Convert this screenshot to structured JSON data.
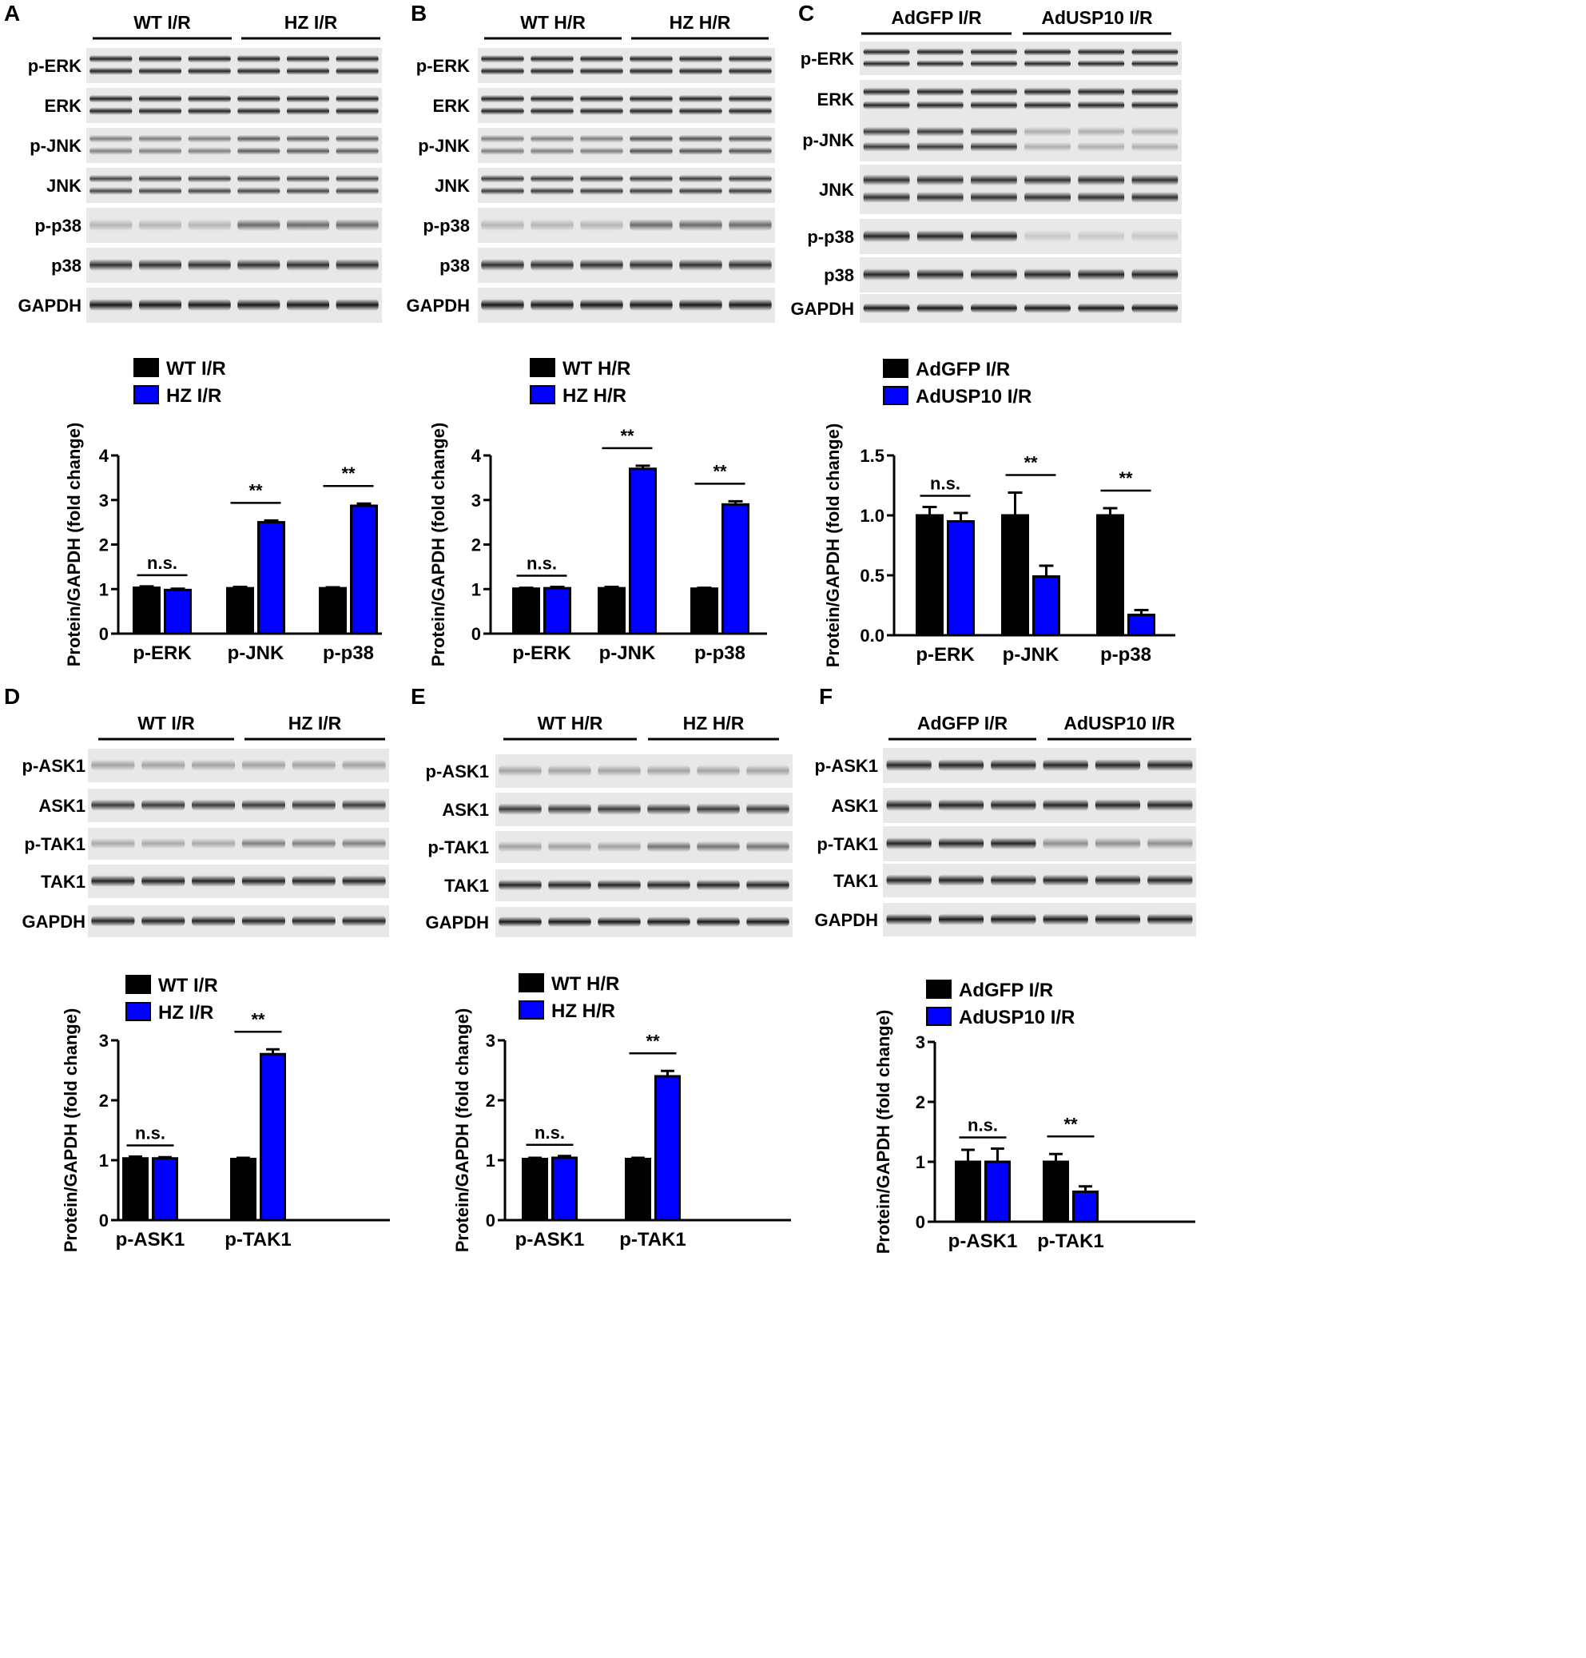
{
  "colors": {
    "black_series": "#000000",
    "blue_series": "#0000ff"
  },
  "panels": [
    {
      "letter": "A",
      "groups": [
        "WT I/R",
        "HZ I/R"
      ],
      "proteins": [
        "p-ERK",
        "ERK",
        "p-JNK",
        "JNK",
        "p-p38",
        "p38",
        "GAPDH"
      ],
      "blot_intensity": [
        0.85,
        0.85,
        0.6,
        0.7,
        0.55,
        0.8,
        0.9
      ],
      "blot_double_band": [
        true,
        true,
        true,
        true,
        false,
        false,
        false
      ],
      "blot_ratio": [
        1,
        1,
        0.75,
        1,
        0.4,
        1,
        1
      ]
    },
    {
      "letter": "B",
      "groups": [
        "WT H/R",
        "HZ H/R"
      ],
      "proteins": [
        "p-ERK",
        "ERK",
        "p-JNK",
        "JNK",
        "p-p38",
        "p38",
        "GAPDH"
      ],
      "blot_intensity": [
        0.85,
        0.85,
        0.65,
        0.75,
        0.55,
        0.8,
        0.9
      ],
      "blot_double_band": [
        true,
        true,
        true,
        true,
        false,
        false,
        false
      ],
      "blot_ratio": [
        1,
        1,
        0.7,
        1,
        0.4,
        1,
        1
      ]
    },
    {
      "letter": "C",
      "groups": [
        "AdGFP I/R",
        "AdUSP10 I/R"
      ],
      "proteins": [
        "p-ERK",
        "ERK",
        "p-JNK",
        "JNK",
        "p-p38",
        "p38",
        "GAPDH"
      ],
      "blot_intensity": [
        0.85,
        0.85,
        0.75,
        0.8,
        0.85,
        0.85,
        0.9
      ],
      "blot_double_band": [
        true,
        true,
        true,
        true,
        false,
        false,
        false
      ],
      "blot_ratio": [
        1,
        1,
        3,
        1,
        6,
        1,
        1
      ]
    },
    {
      "letter": "D",
      "groups": [
        "WT I/R",
        "HZ I/R"
      ],
      "proteins": [
        "p-ASK1",
        "ASK1",
        "p-TAK1",
        "TAK1",
        "GAPDH"
      ],
      "blot_intensity": [
        0.3,
        0.75,
        0.45,
        0.85,
        0.85
      ],
      "blot_double_band": [
        false,
        false,
        false,
        false,
        false
      ],
      "blot_ratio": [
        1,
        1,
        0.6,
        1,
        1
      ]
    },
    {
      "letter": "E",
      "groups": [
        "WT H/R",
        "HZ H/R"
      ],
      "proteins": [
        "p-ASK1",
        "ASK1",
        "p-TAK1",
        "TAK1",
        "GAPDH"
      ],
      "blot_intensity": [
        0.3,
        0.75,
        0.5,
        0.85,
        0.9
      ],
      "blot_double_band": [
        false,
        false,
        false,
        false,
        false
      ],
      "blot_ratio": [
        1,
        1,
        0.6,
        1,
        1
      ]
    },
    {
      "letter": "F",
      "groups": [
        "AdGFP I/R",
        "AdUSP10 I/R"
      ],
      "proteins": [
        "p-ASK1",
        "ASK1",
        "p-TAK1",
        "TAK1",
        "GAPDH"
      ],
      "blot_intensity": [
        0.85,
        0.85,
        0.85,
        0.85,
        0.9
      ],
      "blot_double_band": [
        false,
        false,
        false,
        false,
        false
      ],
      "blot_ratio": [
        1,
        1,
        2.2,
        1,
        1
      ]
    }
  ],
  "chart_data": [
    {
      "panel": "A",
      "type": "bar",
      "categories": [
        "p-ERK",
        "p-JNK",
        "p-p38"
      ],
      "series": [
        {
          "name": "WT I/R",
          "values": [
            1.03,
            1.02,
            1.02
          ],
          "errors": [
            0.03,
            0.03,
            0.02
          ]
        },
        {
          "name": "HZ I/R",
          "values": [
            0.98,
            2.5,
            2.87
          ],
          "errors": [
            0.03,
            0.04,
            0.05
          ]
        }
      ],
      "significance": [
        "n.s.",
        "**",
        "**"
      ],
      "ylabel": "Protein/GAPDH (fold change)",
      "ylim": [
        0,
        4
      ],
      "yticks": [
        "0",
        "1",
        "2",
        "3",
        "4"
      ]
    },
    {
      "panel": "B",
      "type": "bar",
      "categories": [
        "p-ERK",
        "p-JNK",
        "p-p38"
      ],
      "series": [
        {
          "name": "WT H/R",
          "values": [
            1.01,
            1.02,
            1.01
          ],
          "errors": [
            0.02,
            0.03,
            0.02
          ]
        },
        {
          "name": "HZ H/R",
          "values": [
            1.02,
            3.7,
            2.9
          ],
          "errors": [
            0.03,
            0.07,
            0.07
          ]
        }
      ],
      "significance": [
        "n.s.",
        "**",
        "**"
      ],
      "ylabel": "Protein/GAPDH (fold change)",
      "ylim": [
        0,
        4
      ],
      "yticks": [
        "0",
        "1",
        "2",
        "3",
        "4"
      ]
    },
    {
      "panel": "C",
      "type": "bar",
      "categories": [
        "p-ERK",
        "p-JNK",
        "p-p38"
      ],
      "series": [
        {
          "name": "AdGFP I/R",
          "values": [
            1.0,
            1.0,
            1.0
          ],
          "errors": [
            0.07,
            0.19,
            0.06
          ]
        },
        {
          "name": "AdUSP10 I/R",
          "values": [
            0.95,
            0.49,
            0.17
          ],
          "errors": [
            0.07,
            0.09,
            0.04
          ]
        }
      ],
      "significance": [
        "n.s.",
        "**",
        "**"
      ],
      "ylabel": "Protein/GAPDH (fold change)",
      "ylim": [
        0,
        1.5
      ],
      "yticks": [
        "0.0",
        "0.5",
        "1.0",
        "1.5"
      ]
    },
    {
      "panel": "D",
      "type": "bar",
      "categories": [
        "p-ASK1",
        "p-TAK1"
      ],
      "series": [
        {
          "name": "WT I/R",
          "values": [
            1.03,
            1.02
          ],
          "errors": [
            0.03,
            0.02
          ]
        },
        {
          "name": "HZ I/R",
          "values": [
            1.03,
            2.77
          ],
          "errors": [
            0.02,
            0.08
          ]
        }
      ],
      "significance": [
        "n.s.",
        "**"
      ],
      "ylabel": "Protein/GAPDH (fold change)",
      "ylim": [
        0,
        3
      ],
      "yticks": [
        "0",
        "1",
        "2",
        "3"
      ]
    },
    {
      "panel": "E",
      "type": "bar",
      "categories": [
        "p-ASK1",
        "p-TAK1"
      ],
      "series": [
        {
          "name": "WT H/R",
          "values": [
            1.02,
            1.02
          ],
          "errors": [
            0.02,
            0.02
          ]
        },
        {
          "name": "HZ H/R",
          "values": [
            1.04,
            2.4
          ],
          "errors": [
            0.03,
            0.09
          ]
        }
      ],
      "significance": [
        "n.s.",
        "**"
      ],
      "ylabel": "Protein/GAPDH (fold change)",
      "ylim": [
        0,
        3
      ],
      "yticks": [
        "0",
        "1",
        "2",
        "3"
      ]
    },
    {
      "panel": "F",
      "type": "bar",
      "categories": [
        "p-ASK1",
        "p-TAK1"
      ],
      "series": [
        {
          "name": "AdGFP I/R",
          "values": [
            1.0,
            1.0
          ],
          "errors": [
            0.2,
            0.13
          ]
        },
        {
          "name": "AdUSP10 I/R",
          "values": [
            1.0,
            0.5
          ],
          "errors": [
            0.22,
            0.09
          ]
        }
      ],
      "significance": [
        "n.s.",
        "**"
      ],
      "ylabel": "Protein/GAPDH (fold change)",
      "ylim": [
        0,
        3
      ],
      "yticks": [
        "0",
        "1",
        "2",
        "3"
      ]
    }
  ]
}
